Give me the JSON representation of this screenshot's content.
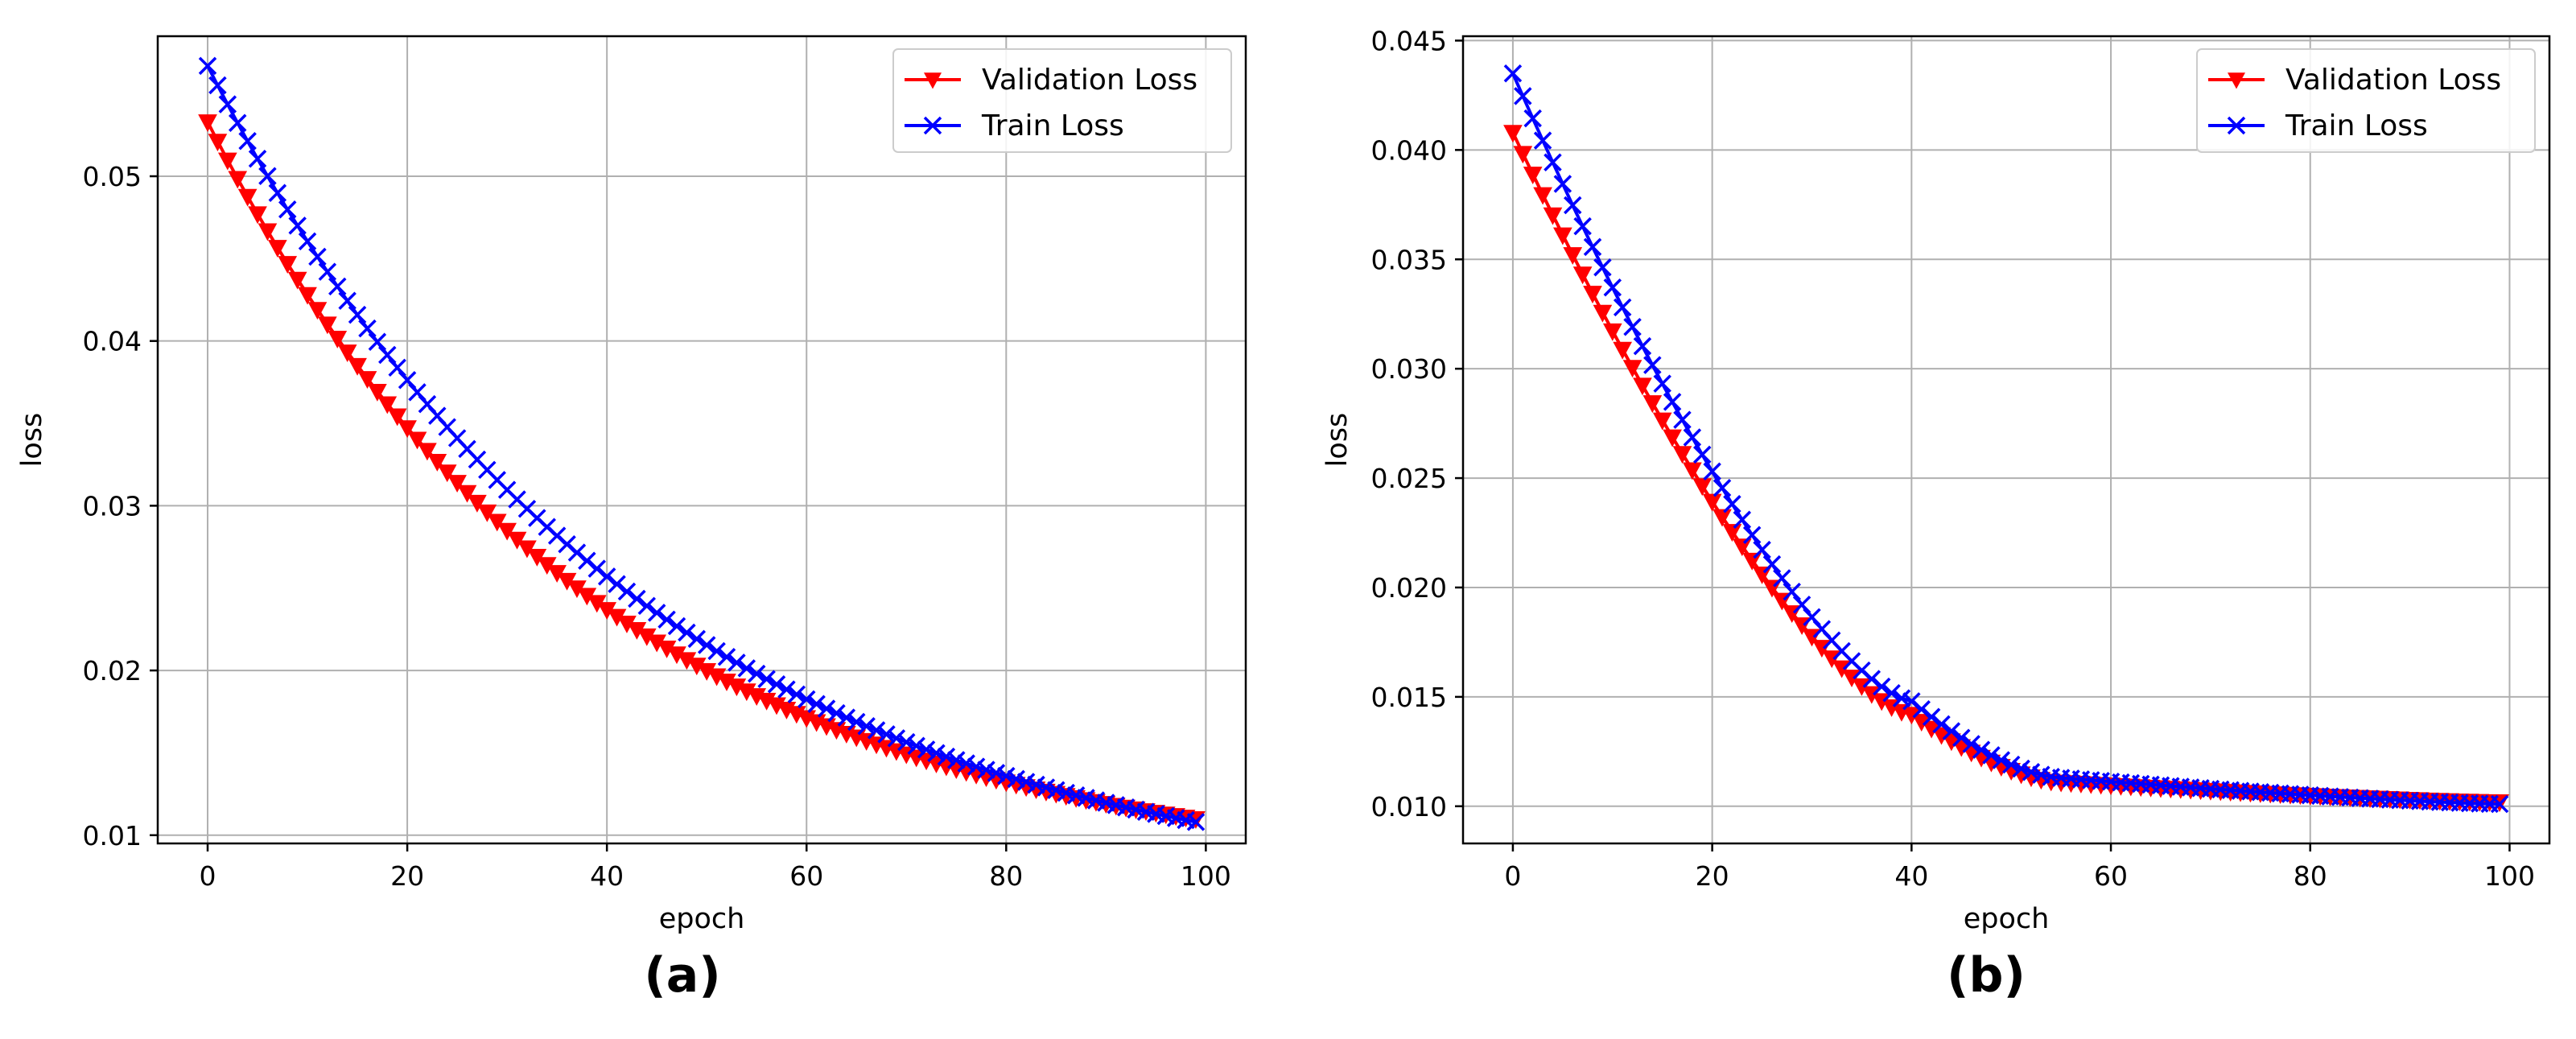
{
  "colors": {
    "validation": "#ff0000",
    "train": "#0000ff",
    "grid": "#b0b0b0"
  },
  "chart_data": [
    {
      "panel_caption": "(a)",
      "type": "line",
      "xlabel": "epoch",
      "ylabel": "loss",
      "xlim": [
        -5,
        104
      ],
      "ylim": [
        0.0095,
        0.0585
      ],
      "xticks": [
        0,
        20,
        40,
        60,
        80,
        100
      ],
      "yticks": [
        0.01,
        0.02,
        0.03,
        0.04,
        0.05
      ],
      "ytick_labels": [
        "0.01",
        "0.02",
        "0.03",
        "0.04",
        "0.05"
      ],
      "grid": true,
      "legend_position": "top-right",
      "series": [
        {
          "name": "Validation Loss",
          "marker": "triangle-down",
          "color": "#ff0000",
          "model": {
            "kind": "decay",
            "start": 0.0533,
            "end": 0.011,
            "k": 0.026
          }
        },
        {
          "name": "Train Loss",
          "marker": "x",
          "color": "#0000ff",
          "model": {
            "kind": "decay",
            "start": 0.0567,
            "end": 0.0108,
            "k": 0.0235
          }
        }
      ]
    },
    {
      "panel_caption": "(b)",
      "type": "line",
      "xlabel": "epoch",
      "ylabel": "loss",
      "xlim": [
        -5,
        104
      ],
      "ylim": [
        0.0083,
        0.0452
      ],
      "xticks": [
        0,
        20,
        40,
        60,
        80,
        100
      ],
      "yticks": [
        0.01,
        0.015,
        0.02,
        0.025,
        0.03,
        0.035,
        0.04,
        0.045
      ],
      "ytick_labels": [
        "0.010",
        "0.015",
        "0.020",
        "0.025",
        "0.030",
        "0.035",
        "0.040",
        "0.045"
      ],
      "grid": true,
      "legend_position": "top-right",
      "series": [
        {
          "name": "Validation Loss",
          "marker": "triangle-down",
          "color": "#ff0000",
          "model": {
            "kind": "knee",
            "start": 0.0408,
            "knee_epoch": 40,
            "knee_value": 0.0142,
            "at_55": 0.0111,
            "end": 0.0102
          }
        },
        {
          "name": "Train Loss",
          "marker": "x",
          "color": "#0000ff",
          "model": {
            "kind": "knee",
            "start": 0.0435,
            "knee_epoch": 40,
            "knee_value": 0.0148,
            "at_55": 0.0113,
            "end": 0.0101
          }
        }
      ]
    }
  ]
}
